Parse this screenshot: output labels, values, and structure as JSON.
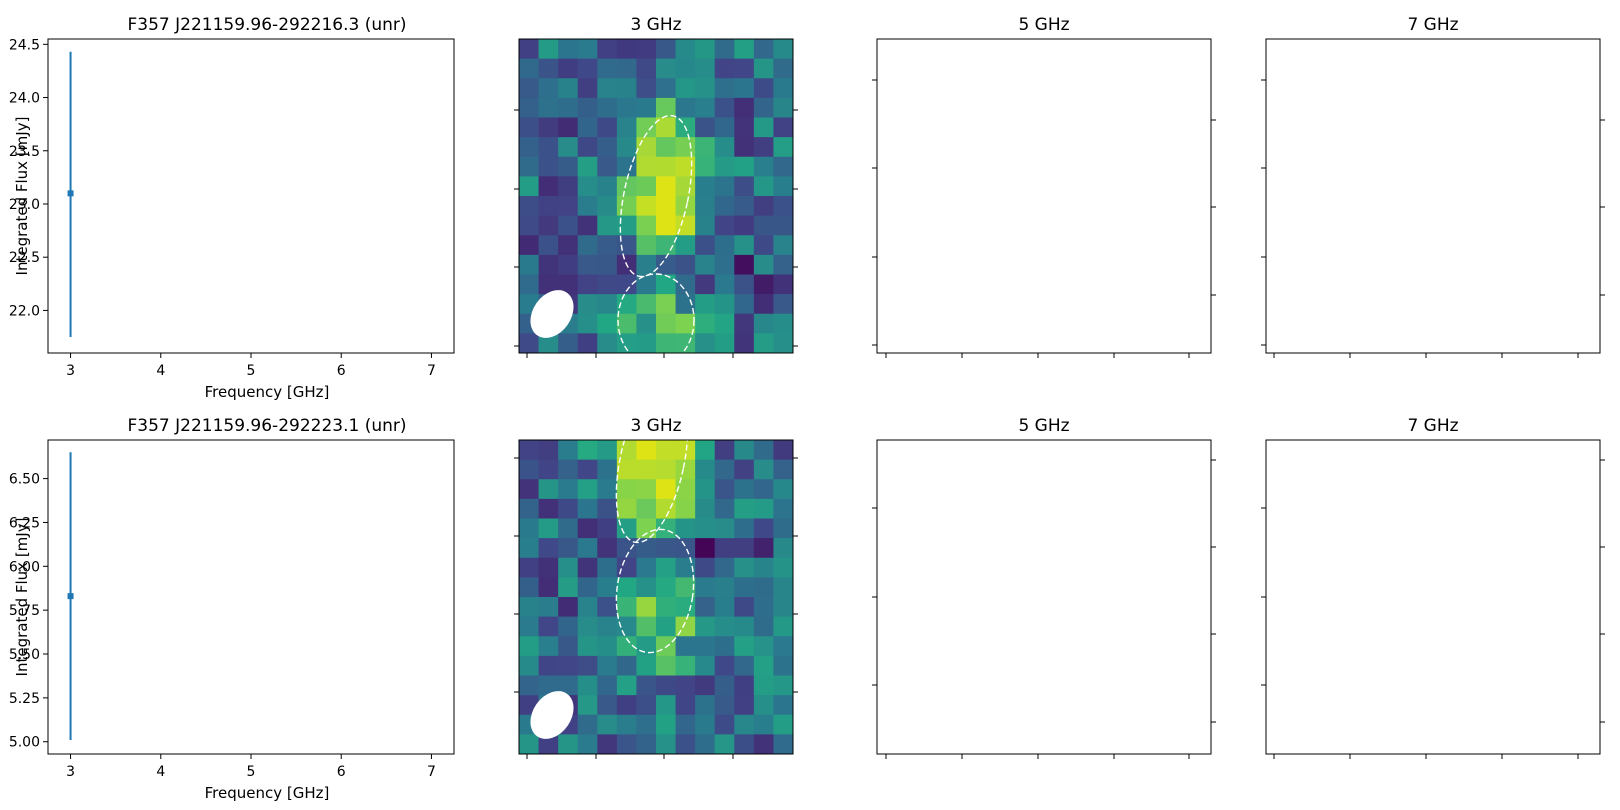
{
  "chart_data": [
    {
      "type": "scatter",
      "title": "F357 J221159.96-292216.3 (unr)",
      "xlabel": "Frequency [GHz]",
      "ylabel": "Integrated Flux [mJy]",
      "xlim": [
        2.75,
        7.25
      ],
      "ylim": [
        21.6,
        24.55
      ],
      "xticks": [
        3,
        4,
        5,
        6,
        7
      ],
      "yticks": [
        22.0,
        22.5,
        23.0,
        23.5,
        24.0,
        24.5
      ],
      "ytick_decimals": 1,
      "points": [
        {
          "x": 3,
          "y": 23.1,
          "yerr_low": 21.75,
          "yerr_high": 24.43
        }
      ],
      "marker_color": "#1f77b4"
    },
    {
      "type": "heatmap",
      "title": "3 GHz",
      "colormap": "viridis"
    },
    {
      "type": "heatmap",
      "title": "5 GHz"
    },
    {
      "type": "heatmap",
      "title": "7 GHz"
    },
    {
      "type": "scatter",
      "title": "F357 J221159.96-292223.1 (unr)",
      "xlabel": "Frequency [GHz]",
      "ylabel": "Integrated Flux [mJy]",
      "xlim": [
        2.75,
        7.25
      ],
      "ylim": [
        4.93,
        6.72
      ],
      "xticks": [
        3,
        4,
        5,
        6,
        7
      ],
      "yticks": [
        5.0,
        5.25,
        5.5,
        5.75,
        6.0,
        6.25,
        6.5
      ],
      "ytick_decimals": 2,
      "points": [
        {
          "x": 3,
          "y": 5.83,
          "yerr_low": 5.01,
          "yerr_high": 6.65
        }
      ],
      "marker_color": "#1f77b4"
    },
    {
      "type": "heatmap",
      "title": "3 GHz",
      "colormap": "viridis"
    },
    {
      "type": "heatmap",
      "title": "5 GHz"
    },
    {
      "type": "heatmap",
      "title": "7 GHz"
    }
  ]
}
